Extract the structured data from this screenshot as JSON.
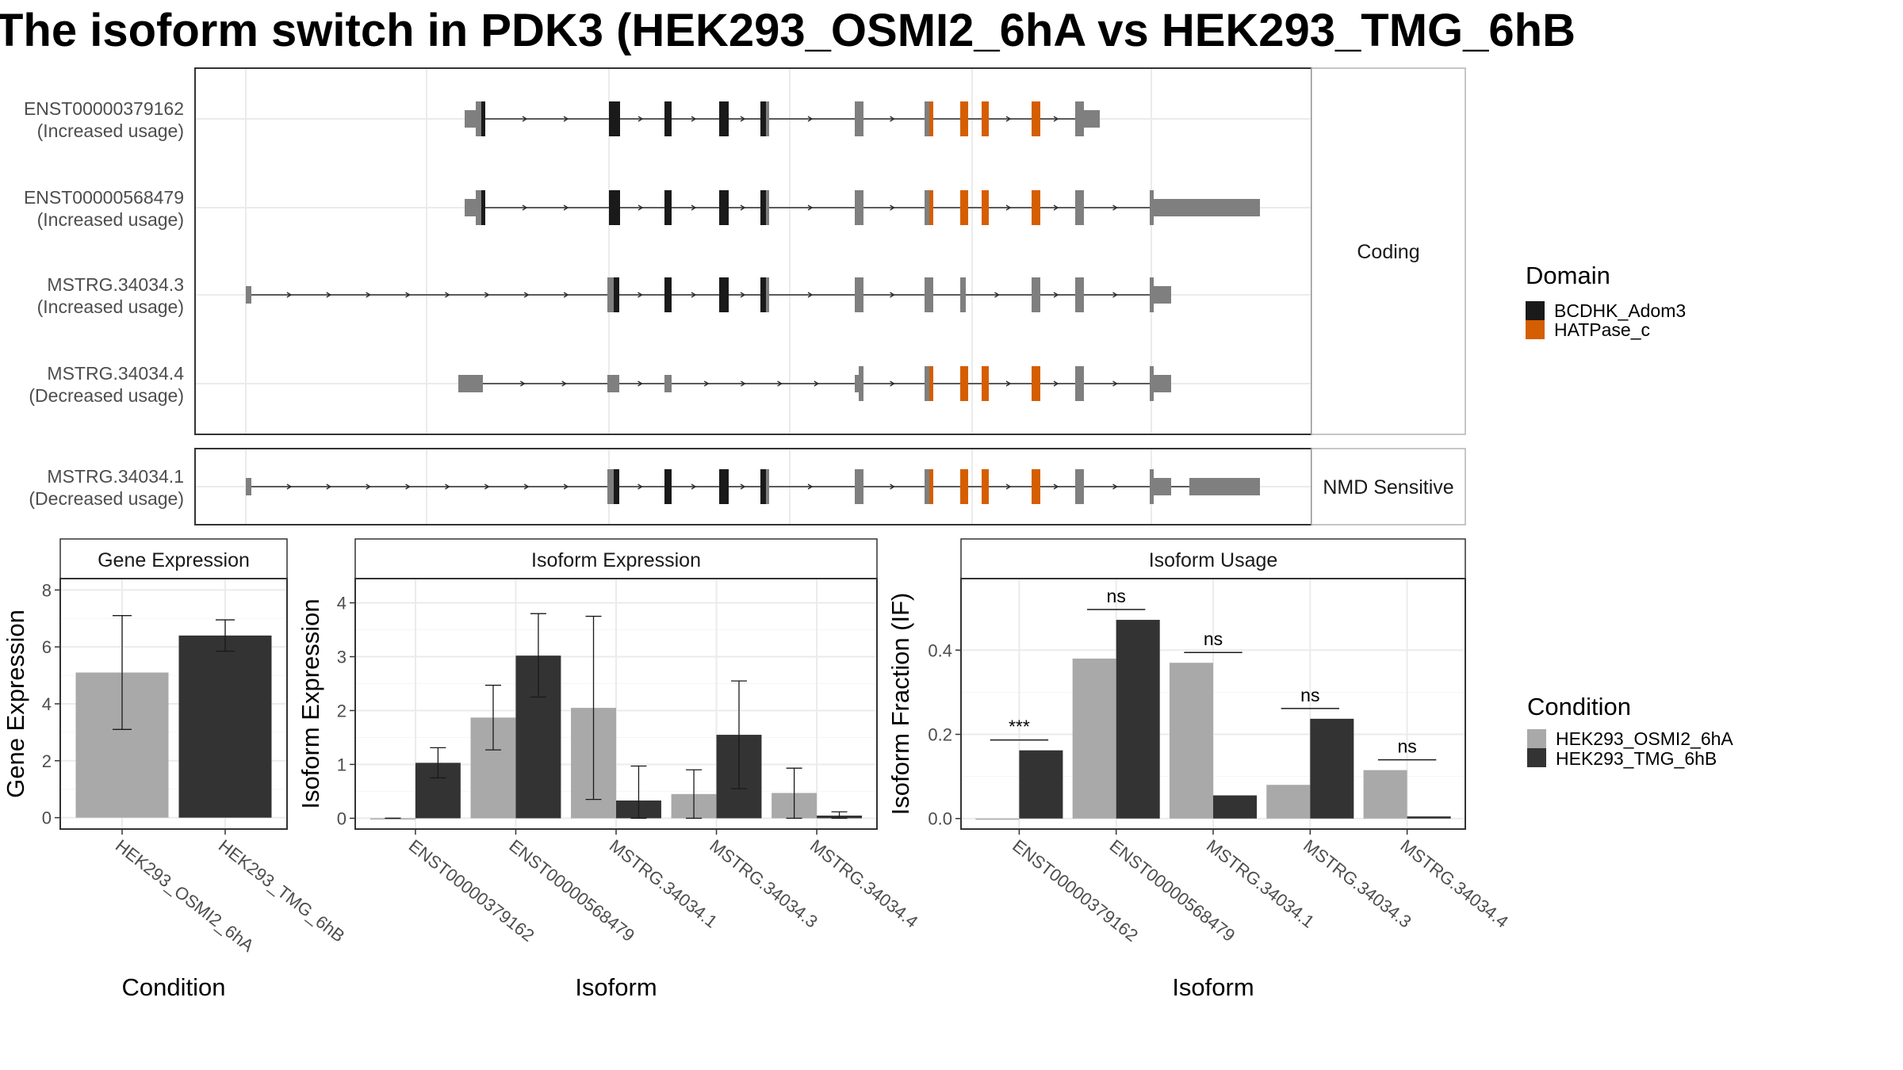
{
  "title": "The isoform switch in PDK3 (HEK293_OSMI2_6hA vs HEK293_TMG_6hB",
  "colors": {
    "domain_BCDHK_Adom3": "#1a1a1a",
    "domain_HATPase_c": "#d55e00",
    "non_domain_exon": "#7f7f7f",
    "cond_A": "#a9a9a9",
    "cond_B": "#333333"
  },
  "structure": {
    "panels": [
      {
        "strip": "Coding",
        "transcripts": [
          {
            "id": "ENST00000379162",
            "label1": "ENST00000379162",
            "label2": "(Increased usage)"
          },
          {
            "id": "ENST00000568479",
            "label1": "ENST00000568479",
            "label2": "(Increased usage)"
          },
          {
            "id": "MSTRG.34034.3",
            "label1": "MSTRG.34034.3",
            "label2": "(Increased usage)"
          },
          {
            "id": "MSTRG.34034.4",
            "label1": "MSTRG.34034.4",
            "label2": "(Decreased usage)"
          }
        ]
      },
      {
        "strip": "NMD Sensitive",
        "transcripts": [
          {
            "id": "MSTRG.34034.1",
            "label1": "MSTRG.34034.1",
            "label2": "(Decreased usage)"
          }
        ]
      }
    ]
  },
  "legend_domain": {
    "title": "Domain",
    "items": [
      {
        "label": "BCDHK_Adom3",
        "color": "#1a1a1a"
      },
      {
        "label": "HATPase_c",
        "color": "#d55e00"
      }
    ]
  },
  "legend_condition": {
    "title": "Condition",
    "items": [
      {
        "label": "HEK293_OSMI2_6hA",
        "color": "#a9a9a9"
      },
      {
        "label": "HEK293_TMG_6hB",
        "color": "#333333"
      }
    ]
  },
  "chart_data": [
    {
      "type": "bar",
      "title": "Gene Expression",
      "xlabel": "Condition",
      "ylabel": "Gene Expression",
      "categories": [
        "HEK293_OSMI2_6hA",
        "HEK293_TMG_6hB"
      ],
      "values": [
        5.1,
        6.4
      ],
      "errors": [
        [
          3.1,
          7.1
        ],
        [
          5.85,
          6.95
        ]
      ],
      "ylim": [
        -0.4,
        8.4
      ],
      "yticks": [
        0,
        2,
        4,
        6,
        8
      ]
    },
    {
      "type": "bar",
      "title": "Isoform Expression",
      "xlabel": "Isoform",
      "ylabel": "Isoform Expression",
      "categories": [
        "ENST00000379162",
        "ENST00000568479",
        "MSTRG.34034.1",
        "MSTRG.34034.3",
        "MSTRG.34034.4"
      ],
      "series": [
        {
          "name": "HEK293_OSMI2_6hA",
          "values": [
            0.0,
            1.87,
            2.05,
            0.45,
            0.47
          ],
          "errors": [
            [
              0.0,
              0.0
            ],
            [
              1.27,
              2.47
            ],
            [
              0.35,
              3.75
            ],
            [
              0.0,
              0.9
            ],
            [
              0.0,
              0.93
            ]
          ]
        },
        {
          "name": "HEK293_TMG_6hB",
          "values": [
            1.03,
            3.02,
            0.33,
            1.55,
            0.05
          ],
          "errors": [
            [
              0.75,
              1.31
            ],
            [
              2.25,
              3.8
            ],
            [
              0.0,
              0.97
            ],
            [
              0.55,
              2.55
            ],
            [
              0.0,
              0.12
            ]
          ]
        }
      ],
      "ylim": [
        -0.2,
        4.45
      ],
      "yticks": [
        0,
        1,
        2,
        3,
        4
      ]
    },
    {
      "type": "bar",
      "title": "Isoform Usage",
      "xlabel": "Isoform",
      "ylabel": "Isoform Fraction (IF)",
      "categories": [
        "ENST00000379162",
        "ENST00000568479",
        "MSTRG.34034.1",
        "MSTRG.34034.3",
        "MSTRG.34034.4"
      ],
      "series": [
        {
          "name": "HEK293_OSMI2_6hA",
          "values": [
            0.0,
            0.38,
            0.37,
            0.08,
            0.115
          ]
        },
        {
          "name": "HEK293_TMG_6hB",
          "values": [
            0.162,
            0.472,
            0.055,
            0.237,
            0.005
          ]
        }
      ],
      "significance": [
        "***",
        "ns",
        "ns",
        "ns",
        "ns"
      ],
      "ylim": [
        -0.025,
        0.57
      ],
      "yticks": [
        0.0,
        0.2,
        0.4
      ],
      "ytick_labels": [
        "0.0",
        "0.2",
        "0.4"
      ]
    }
  ]
}
